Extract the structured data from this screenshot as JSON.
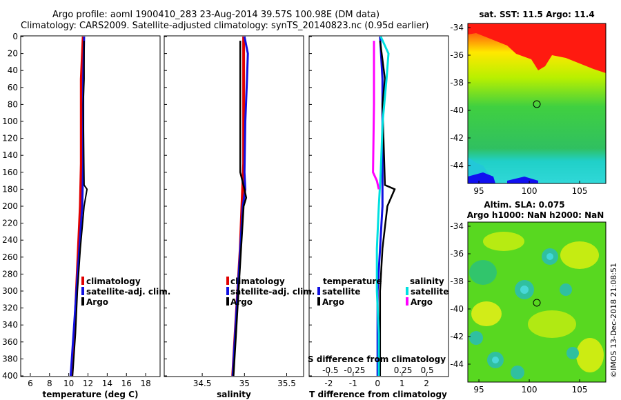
{
  "header": {
    "line1": "Argo profile: aoml 1900410_283 23-Aug-2014 39.57S 100.98E (DM data)",
    "line2": "Climatology: CARS2009. Satellite-adjusted climatology: synTS_20140823.nc (0.95d earlier)"
  },
  "colors": {
    "climatology": "#e00000",
    "satellite": "#1010e0",
    "argo": "#000000",
    "sal_satellite": "#00e0e0",
    "sal_argo": "#ff00ff"
  },
  "chart_data": [
    {
      "type": "line",
      "id": "temperature",
      "xlabel": "temperature (deg C)",
      "xticks": [
        "6",
        "8",
        "10",
        "12",
        "14",
        "16",
        "18"
      ],
      "xlim": [
        5,
        19.5
      ],
      "ylim": [
        0,
        400
      ],
      "yticks": [
        "0",
        "20",
        "40",
        "60",
        "80",
        "100",
        "120",
        "140",
        "160",
        "180",
        "200",
        "220",
        "240",
        "260",
        "280",
        "300",
        "320",
        "340",
        "360",
        "380",
        "400"
      ],
      "legend": [
        "climatology",
        "satellite-adj. clim.",
        "Argo"
      ],
      "series": [
        {
          "name": "climatology",
          "depth": [
            0,
            50,
            100,
            150,
            200,
            250,
            300,
            350,
            400
          ],
          "values": [
            11.5,
            11.3,
            11.3,
            11.3,
            11.2,
            11.0,
            10.8,
            10.6,
            10.3
          ]
        },
        {
          "name": "satellite-adj. clim.",
          "depth": [
            0,
            50,
            100,
            150,
            200,
            250,
            300,
            350,
            400
          ],
          "values": [
            11.6,
            11.5,
            11.5,
            11.5,
            11.4,
            11.1,
            10.8,
            10.5,
            10.2
          ]
        },
        {
          "name": "Argo",
          "depth": [
            5,
            50,
            80,
            175,
            180,
            200,
            250,
            300,
            350,
            400
          ],
          "values": [
            11.6,
            11.6,
            11.5,
            11.6,
            11.9,
            11.6,
            11.2,
            10.9,
            10.7,
            10.4
          ]
        }
      ]
    },
    {
      "type": "line",
      "id": "salinity",
      "xlabel": "salinity",
      "xticks": [
        "34.5",
        "35",
        "35.5"
      ],
      "xlim": [
        34.05,
        35.7
      ],
      "ylim": [
        0,
        400
      ],
      "legend": [
        "climatology",
        "satellite-adj. clim.",
        "Argo"
      ],
      "series": [
        {
          "name": "climatology",
          "depth": [
            0,
            100,
            150,
            200,
            250,
            300,
            350,
            400
          ],
          "values": [
            34.99,
            34.99,
            34.99,
            34.97,
            34.95,
            34.92,
            34.89,
            34.86
          ]
        },
        {
          "name": "satellite-adj. clim.",
          "depth": [
            0,
            20,
            50,
            100,
            160,
            180,
            200,
            250,
            300,
            350,
            400
          ],
          "values": [
            35.0,
            35.04,
            35.03,
            35.01,
            35.0,
            35.01,
            34.98,
            34.95,
            34.92,
            34.89,
            34.86
          ]
        },
        {
          "name": "Argo",
          "depth": [
            5,
            160,
            180,
            190,
            200,
            250,
            300,
            350,
            400
          ],
          "values": [
            34.95,
            34.95,
            35.0,
            35.02,
            34.99,
            34.96,
            34.93,
            34.9,
            34.87
          ]
        }
      ]
    },
    {
      "type": "line",
      "id": "differences",
      "xlabel": "T difference from climatology",
      "top_label": "S difference from climatology",
      "xticks": [
        "-2",
        "-1",
        "0",
        "1",
        "2"
      ],
      "xlim": [
        -2.8,
        2.9
      ],
      "s_ticks": [
        "-0.5",
        "-0.25",
        "0",
        "0.25",
        "0.5"
      ],
      "legend_temperature_title": "temperature",
      "legend_salinity_title": "salinity",
      "legend_temperature": [
        "satellite",
        "Argo"
      ],
      "legend_salinity": [
        "satellite",
        "Argo"
      ],
      "series": [
        {
          "name": "temperature satellite",
          "depth": [
            0,
            50,
            100,
            200,
            250,
            300,
            350,
            400
          ],
          "values": [
            0.1,
            0.2,
            0.2,
            0.2,
            0.1,
            0.0,
            0.0,
            0.0
          ]
        },
        {
          "name": "temperature Argo",
          "depth": [
            5,
            50,
            80,
            175,
            180,
            200,
            250,
            300,
            350,
            400
          ],
          "values": [
            0.1,
            0.3,
            0.2,
            0.3,
            0.7,
            0.4,
            0.2,
            0.1,
            0.1,
            0.1
          ]
        },
        {
          "name": "salinity satellite",
          "depth": [
            0,
            20,
            50,
            100,
            160,
            200,
            250,
            300,
            350,
            400
          ],
          "values": [
            0.02,
            0.1,
            0.08,
            0.04,
            0.02,
            0.0,
            -0.02,
            -0.02,
            0.0,
            0.0
          ]
        },
        {
          "name": "salinity Argo",
          "depth": [
            5,
            80,
            160,
            170,
            180
          ],
          "values": [
            -0.05,
            -0.05,
            -0.06,
            -0.02,
            0.0
          ]
        }
      ]
    }
  ],
  "maps": {
    "sst": {
      "title": "sat. SST: 11.5 Argo: 11.4",
      "yticks": [
        "-34",
        "-36",
        "-38",
        "-40",
        "-42",
        "-44"
      ],
      "xticks": [
        "95",
        "100",
        "105"
      ]
    },
    "sla": {
      "title1": "Altim. SLA: 0.075",
      "title2": "Argo h1000: NaN h2000: NaN",
      "yticks": [
        "-34",
        "-36",
        "-38",
        "-40",
        "-42",
        "-44"
      ],
      "xticks": [
        "95",
        "100",
        "105"
      ]
    }
  },
  "credit": "©IMOS 13-Dec-2018 21:08:51"
}
